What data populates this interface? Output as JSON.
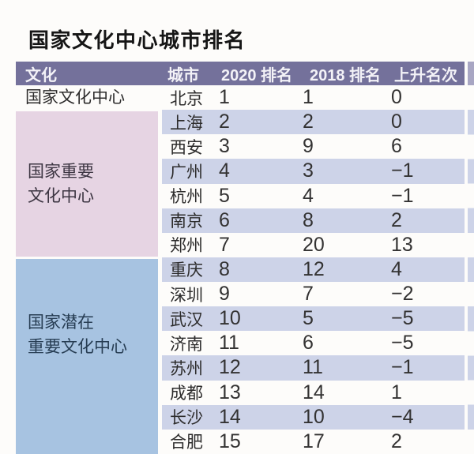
{
  "title": "国家文化中心城市排名",
  "colors": {
    "header_bg": "#74719b",
    "header_text": "#f3f2f7",
    "row_stripe": "#cdd3e8",
    "group_pink_bg": "#e6d4e3",
    "group_blue_bg": "#a7c3e1",
    "body_text": "#2d2c2c"
  },
  "table": {
    "columns": [
      "文化",
      "城市",
      "2020 排名",
      "2018 排名",
      "上升名次"
    ],
    "groups": [
      {
        "label": "国家文化中心",
        "label_lines": [
          "国家文化中心"
        ],
        "rows": [
          {
            "city": "北京",
            "rank_2020": "1",
            "rank_2018": "1",
            "change": "0"
          }
        ]
      },
      {
        "label": "国家重要文化中心",
        "label_lines": [
          "国家重要",
          "文化中心"
        ],
        "rows": [
          {
            "city": "上海",
            "rank_2020": "2",
            "rank_2018": "2",
            "change": "0"
          },
          {
            "city": "西安",
            "rank_2020": "3",
            "rank_2018": "9",
            "change": "6"
          },
          {
            "city": "广州",
            "rank_2020": "4",
            "rank_2018": "3",
            "change": "−1"
          },
          {
            "city": "杭州",
            "rank_2020": "5",
            "rank_2018": "4",
            "change": "−1"
          },
          {
            "city": "南京",
            "rank_2020": "6",
            "rank_2018": "8",
            "change": "2"
          },
          {
            "city": "郑州",
            "rank_2020": "7",
            "rank_2018": "20",
            "change": "13"
          }
        ]
      },
      {
        "label": "国家潜在重要文化中心",
        "label_lines": [
          "国家潜在",
          "重要文化中心"
        ],
        "rows": [
          {
            "city": "重庆",
            "rank_2020": "8",
            "rank_2018": "12",
            "change": "4"
          },
          {
            "city": "深圳",
            "rank_2020": "9",
            "rank_2018": "7",
            "change": "−2"
          },
          {
            "city": "武汉",
            "rank_2020": "10",
            "rank_2018": "5",
            "change": "−5"
          },
          {
            "city": "济南",
            "rank_2020": "11",
            "rank_2018": "6",
            "change": "−5"
          },
          {
            "city": "苏州",
            "rank_2020": "12",
            "rank_2018": "11",
            "change": "−1"
          },
          {
            "city": "成都",
            "rank_2020": "13",
            "rank_2018": "14",
            "change": "1"
          },
          {
            "city": "长沙",
            "rank_2020": "14",
            "rank_2018": "10",
            "change": "−4"
          },
          {
            "city": "合肥",
            "rank_2020": "15",
            "rank_2018": "17",
            "change": "2"
          }
        ]
      }
    ]
  },
  "chart_data": {
    "type": "table",
    "title": "国家文化中心城市排名",
    "columns": [
      "文化",
      "城市",
      "2020 排名",
      "2018 排名",
      "上升名次"
    ],
    "rows": [
      [
        "国家文化中心",
        "北京",
        1,
        1,
        0
      ],
      [
        "国家重要文化中心",
        "上海",
        2,
        2,
        0
      ],
      [
        "国家重要文化中心",
        "西安",
        3,
        9,
        6
      ],
      [
        "国家重要文化中心",
        "广州",
        4,
        3,
        -1
      ],
      [
        "国家重要文化中心",
        "杭州",
        5,
        4,
        -1
      ],
      [
        "国家重要文化中心",
        "南京",
        6,
        8,
        2
      ],
      [
        "国家重要文化中心",
        "郑州",
        7,
        20,
        13
      ],
      [
        "国家潜在重要文化中心",
        "重庆",
        8,
        12,
        4
      ],
      [
        "国家潜在重要文化中心",
        "深圳",
        9,
        7,
        -2
      ],
      [
        "国家潜在重要文化中心",
        "武汉",
        10,
        5,
        -5
      ],
      [
        "国家潜在重要文化中心",
        "济南",
        11,
        6,
        -5
      ],
      [
        "国家潜在重要文化中心",
        "苏州",
        12,
        11,
        -1
      ],
      [
        "国家潜在重要文化中心",
        "成都",
        13,
        14,
        1
      ],
      [
        "国家潜在重要文化中心",
        "长沙",
        14,
        10,
        -4
      ],
      [
        "国家潜在重要文化中心",
        "合肥",
        15,
        17,
        2
      ]
    ]
  }
}
